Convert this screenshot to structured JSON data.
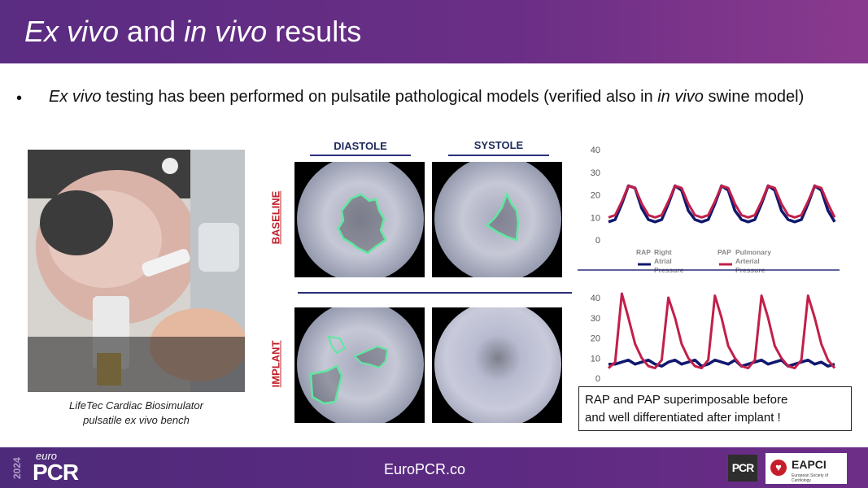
{
  "header": {
    "title_part1": "Ex vivo",
    "title_part2": " and ",
    "title_part3": "in vivo",
    "title_part4": " results"
  },
  "bullet": {
    "marker": "•",
    "part1": "Ex vivo",
    "part2": " testing has been performed on pulsatile pathological models (verified also in ",
    "part3": "in vivo",
    "part4": " swine model)"
  },
  "photo": {
    "caption_line1": "LifeTec Cardiac Biosimulator",
    "caption_line2": "pulsatile ex vivo bench"
  },
  "scopes": {
    "col_diastole": "DIASTOLE",
    "col_systole": "SYSTOLE",
    "row_baseline": "BASELINE",
    "row_implant": "IMPLANT"
  },
  "chart_data": [
    {
      "type": "line",
      "title": "",
      "yticks": [
        0,
        10,
        20,
        30,
        40
      ],
      "ylim": [
        0,
        40
      ],
      "legend_placement": "bottom",
      "series": [
        {
          "name": "Right Atrial Pressure",
          "abbr": "RAP",
          "color": "#10186e",
          "values": [
            8,
            9,
            16,
            24,
            23,
            14,
            9,
            8,
            9,
            16,
            24,
            22,
            13,
            9,
            8,
            9,
            16,
            24,
            22,
            13,
            9,
            8,
            9,
            16,
            24,
            22,
            13,
            9,
            8,
            9,
            16,
            24,
            22,
            13,
            8
          ]
        },
        {
          "name": "Pulmonary Arterial Pressure",
          "abbr": "PAP",
          "color": "#c21f4a",
          "values": [
            10,
            11,
            17,
            24,
            23,
            16,
            11,
            10,
            11,
            17,
            24,
            23,
            16,
            11,
            10,
            11,
            17,
            24,
            23,
            16,
            11,
            10,
            11,
            17,
            24,
            23,
            16,
            11,
            10,
            11,
            17,
            24,
            23,
            16,
            10
          ]
        }
      ]
    },
    {
      "type": "line",
      "title": "",
      "yticks": [
        0,
        10,
        20,
        30,
        40
      ],
      "ylim": [
        0,
        40
      ],
      "series": [
        {
          "name": "RAP",
          "color": "#10186e",
          "values": [
            7,
            7,
            8,
            9,
            7,
            8,
            9,
            7,
            6,
            8,
            9,
            7,
            8,
            9,
            6,
            7,
            9,
            8,
            7,
            9,
            6,
            7,
            8,
            9,
            7,
            8,
            9,
            6,
            7,
            8,
            9,
            7,
            8,
            6,
            7
          ]
        },
        {
          "name": "PAP",
          "color": "#c21f4a",
          "values": [
            5,
            8,
            42,
            30,
            17,
            10,
            6,
            5,
            9,
            40,
            30,
            17,
            10,
            6,
            5,
            9,
            41,
            30,
            16,
            10,
            6,
            5,
            9,
            41,
            30,
            16,
            10,
            6,
            5,
            9,
            41,
            30,
            17,
            9,
            5
          ]
        }
      ]
    }
  ],
  "note": {
    "text_line1": "RAP and PAP superimposable before",
    "text_line2": "and well differentiated after implant !"
  },
  "footer": {
    "year": "2024",
    "euro": "euro",
    "pcr": "PCR",
    "site": "EuroPCR.co",
    "pcr_badge": "PCR",
    "eapci_name": "EAPCI",
    "eapci_sub": "European Society of Cardiology"
  }
}
